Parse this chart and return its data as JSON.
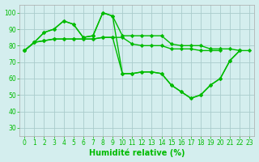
{
  "xlabel": "Humidité relative (%)",
  "bg_color": "#d4eeee",
  "grid_color": "#aacccc",
  "line_color": "#00bb00",
  "xlim": [
    -0.5,
    23.5
  ],
  "ylim": [
    25,
    105
  ],
  "yticks": [
    30,
    40,
    50,
    60,
    70,
    80,
    90,
    100
  ],
  "xticks": [
    0,
    1,
    2,
    3,
    4,
    5,
    6,
    7,
    8,
    9,
    10,
    11,
    12,
    13,
    14,
    15,
    16,
    17,
    18,
    19,
    20,
    21,
    22,
    23
  ],
  "series": [
    [
      77,
      82,
      88,
      90,
      95,
      93,
      85,
      86,
      100,
      98,
      86,
      86,
      86,
      86,
      86,
      81,
      80,
      80,
      80,
      78,
      78,
      78,
      77,
      77
    ],
    [
      77,
      82,
      83,
      84,
      84,
      84,
      84,
      84,
      85,
      85,
      85,
      81,
      80,
      80,
      80,
      78,
      78,
      78,
      77,
      77,
      77,
      null,
      null,
      null
    ],
    [
      77,
      82,
      88,
      90,
      95,
      93,
      85,
      86,
      100,
      98,
      63,
      63,
      64,
      64,
      63,
      56,
      52,
      48,
      50,
      56,
      60,
      71,
      77,
      null
    ],
    [
      77,
      82,
      83,
      84,
      84,
      84,
      84,
      84,
      85,
      85,
      63,
      63,
      64,
      64,
      63,
      56,
      52,
      48,
      50,
      56,
      60,
      71,
      77,
      null
    ]
  ],
  "xlabel_fontsize": 7,
  "tick_fontsize": 5.5,
  "line_width": 1.0,
  "marker": "D",
  "marker_size": 2.2
}
